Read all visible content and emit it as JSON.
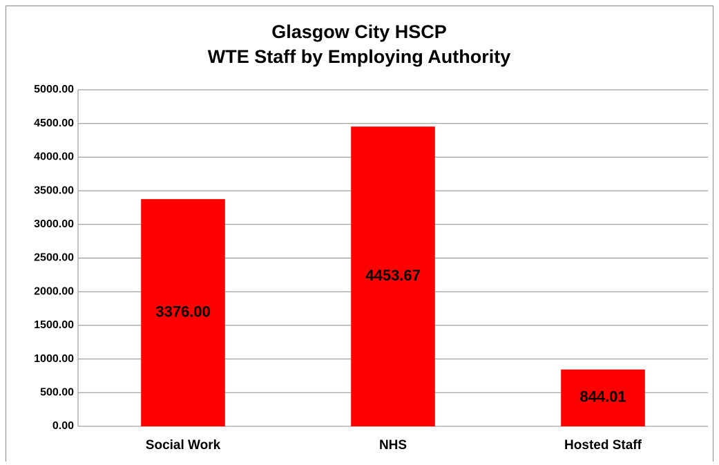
{
  "chart_data": {
    "type": "bar",
    "title": "Glasgow City HSCP",
    "subtitle": "WTE Staff by Employing Authority",
    "categories": [
      "Social Work",
      "NHS",
      "Hosted Staff"
    ],
    "values": [
      3376,
      4453.67,
      844.01
    ],
    "value_labels": [
      "3376.00",
      "4453.67",
      "844.01"
    ],
    "color": "#ff0000",
    "ylim": [
      0,
      5000
    ],
    "yticks": [
      {
        "value": 0,
        "label": "0.00"
      },
      {
        "value": 500,
        "label": "500.00"
      },
      {
        "value": 1000,
        "label": "1000.00"
      },
      {
        "value": 1500,
        "label": "1500.00"
      },
      {
        "value": 2000,
        "label": "2000.00"
      },
      {
        "value": 2500,
        "label": "2500.00"
      },
      {
        "value": 3000,
        "label": "3000.00"
      },
      {
        "value": 3500,
        "label": "3500.00"
      },
      {
        "value": 4000,
        "label": "4000.00"
      },
      {
        "value": 4500,
        "label": "4500.00"
      },
      {
        "value": 5000,
        "label": "5000.00"
      }
    ],
    "grid": true
  }
}
